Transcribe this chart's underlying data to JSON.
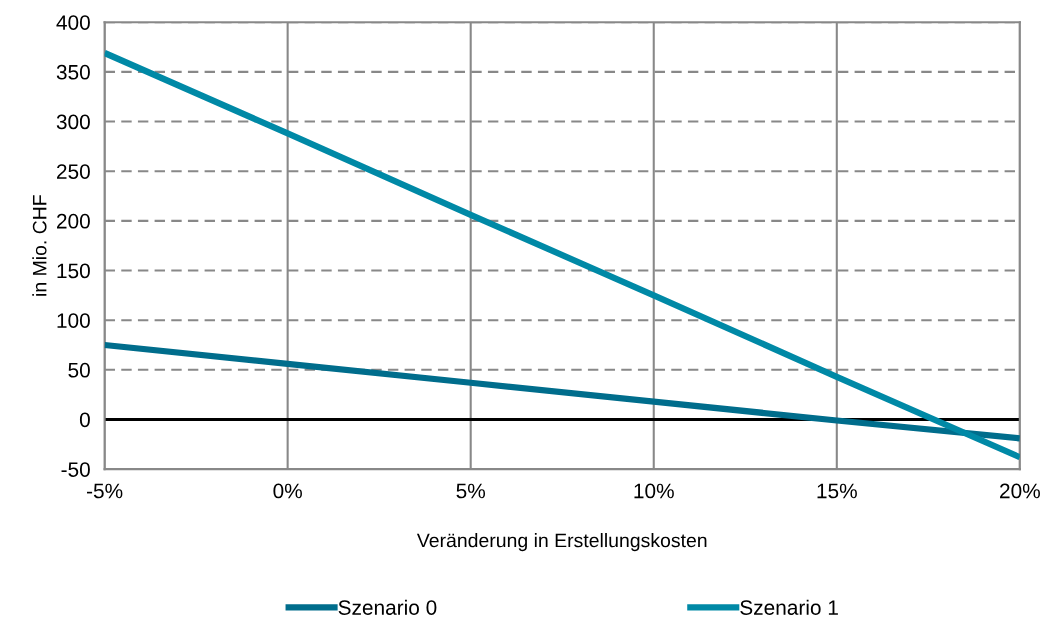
{
  "chart_data": {
    "type": "line",
    "xlabel": "Veränderung in Erstellungskosten",
    "ylabel": "in Mio. CHF",
    "x": [
      -5,
      0,
      5,
      10,
      15,
      20
    ],
    "series": [
      {
        "name": "Szenario 0",
        "color": "#006d8c",
        "values": [
          75,
          56,
          37,
          18,
          -1,
          -19
        ]
      },
      {
        "name": "Szenario 1",
        "color": "#0089a6",
        "values": [
          369,
          288,
          206,
          125,
          43,
          -38
        ]
      }
    ],
    "xlim": [
      -5,
      20
    ],
    "xticks": [
      {
        "value": -5,
        "label": "-5%"
      },
      {
        "value": 0,
        "label": "0%"
      },
      {
        "value": 5,
        "label": "5%"
      },
      {
        "value": 10,
        "label": "10%"
      },
      {
        "value": 15,
        "label": "15%"
      },
      {
        "value": 20,
        "label": "20%"
      }
    ],
    "ylim": [
      -50,
      400
    ],
    "yticks": [
      -50,
      0,
      50,
      100,
      150,
      200,
      250,
      300,
      350,
      400
    ],
    "ref_lines": [
      {
        "axis": "y",
        "value": 0,
        "color": "#000000"
      }
    ],
    "grid": true,
    "legend": "bottom",
    "marker": "none",
    "line_style": "solid"
  }
}
